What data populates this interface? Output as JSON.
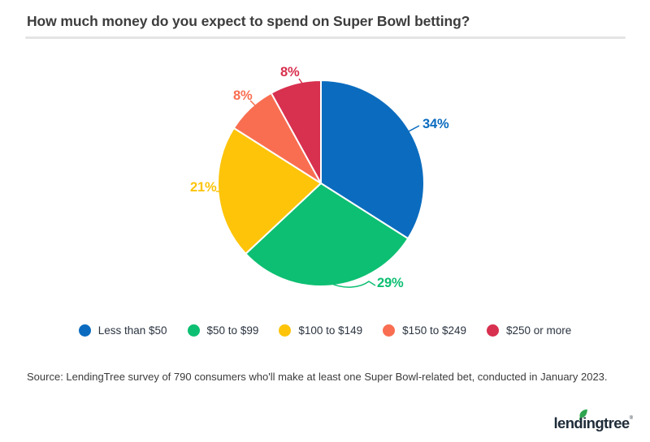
{
  "header": {
    "title": "How much money do you expect to spend on Super Bowl betting?"
  },
  "chart_data": {
    "type": "pie",
    "title": "How much money do you expect to spend on Super Bowl betting?",
    "start_angle_deg": 0,
    "direction": "clockwise",
    "legend_position": "bottom",
    "slices": [
      {
        "category": "Less than $50",
        "value": 34,
        "label": "34%",
        "color": "#0b6cbf"
      },
      {
        "category": "$50 to $99",
        "value": 29,
        "label": "29%",
        "color": "#0dbf72"
      },
      {
        "category": "$100 to $149",
        "value": 21,
        "label": "21%",
        "color": "#fdc40a"
      },
      {
        "category": "$150 to $249",
        "value": 8,
        "label": "8%",
        "color": "#f96e51"
      },
      {
        "category": "$250 or more",
        "value": 8,
        "label": "8%",
        "color": "#d8304f"
      }
    ]
  },
  "footer": {
    "source": "Source: LendingTree survey of 790 consumers who'll make at least one Super Bowl-related bet, conducted in January 2023.",
    "logo_text": "lendingtree",
    "registered_mark": "®",
    "logo_color": "#1f2c39",
    "leaf_color": "#2ea44f"
  }
}
